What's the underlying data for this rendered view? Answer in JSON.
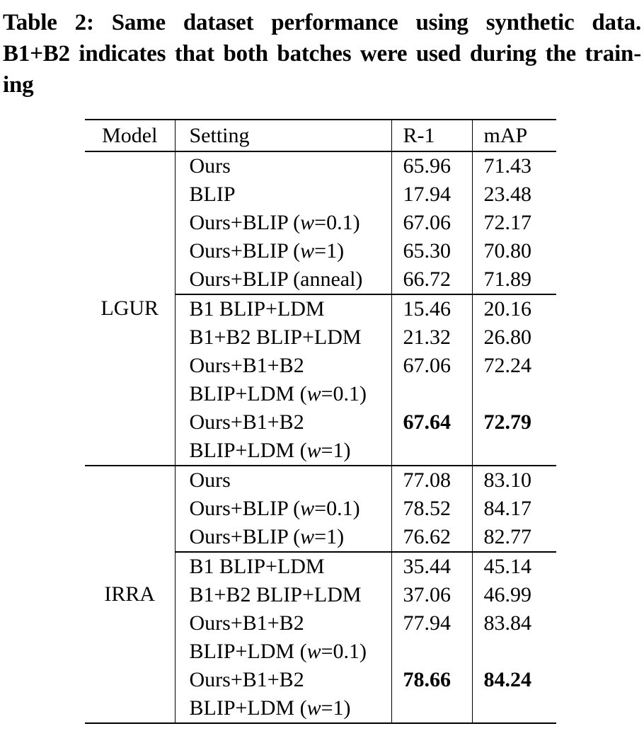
{
  "caption": {
    "lines": [
      "Table 2: Same dataset performance using synthetic data.",
      "B1+B2 indicates that both batches were used during the train-",
      "ing"
    ]
  },
  "table": {
    "headers": [
      "Model",
      "Setting",
      "R-1",
      "mAP"
    ],
    "groups": [
      {
        "model": "LGUR",
        "subgroups": [
          {
            "rows": [
              {
                "setting": [
                  "Ours"
                ],
                "r1": "65.96",
                "map": "71.43",
                "bold": false
              },
              {
                "setting": [
                  "BLIP"
                ],
                "r1": "17.94",
                "map": "23.48",
                "bold": false
              },
              {
                "setting": [
                  "Ours+BLIP (w=0.1)"
                ],
                "r1": "67.06",
                "map": "72.17",
                "bold": false
              },
              {
                "setting": [
                  "Ours+BLIP (w=1)"
                ],
                "r1": "65.30",
                "map": "70.80",
                "bold": false
              },
              {
                "setting": [
                  "Ours+BLIP (anneal)"
                ],
                "r1": "66.72",
                "map": "71.89",
                "bold": false
              }
            ]
          },
          {
            "rows": [
              {
                "setting": [
                  "B1 BLIP+LDM"
                ],
                "r1": "15.46",
                "map": "20.16",
                "bold": false
              },
              {
                "setting": [
                  "B1+B2 BLIP+LDM"
                ],
                "r1": "21.32",
                "map": "26.80",
                "bold": false
              },
              {
                "setting": [
                  "Ours+B1+B2",
                  "BLIP+LDM (w=0.1)"
                ],
                "r1": "67.06",
                "map": "72.24",
                "bold": false
              },
              {
                "setting": [
                  "Ours+B1+B2",
                  "BLIP+LDM (w=1)"
                ],
                "r1": "67.64",
                "map": "72.79",
                "bold": true
              }
            ]
          }
        ]
      },
      {
        "model": "IRRA",
        "subgroups": [
          {
            "rows": [
              {
                "setting": [
                  "Ours"
                ],
                "r1": "77.08",
                "map": "83.10",
                "bold": false
              },
              {
                "setting": [
                  "Ours+BLIP (w=0.1)"
                ],
                "r1": "78.52",
                "map": "84.17",
                "bold": false
              },
              {
                "setting": [
                  "Ours+BLIP (w=1)"
                ],
                "r1": "76.62",
                "map": "82.77",
                "bold": false
              }
            ]
          },
          {
            "rows": [
              {
                "setting": [
                  "B1 BLIP+LDM"
                ],
                "r1": "35.44",
                "map": "45.14",
                "bold": false
              },
              {
                "setting": [
                  "B1+B2 BLIP+LDM"
                ],
                "r1": "37.06",
                "map": "46.99",
                "bold": false
              },
              {
                "setting": [
                  "Ours+B1+B2",
                  "BLIP+LDM (w=0.1)"
                ],
                "r1": "77.94",
                "map": "83.84",
                "bold": false
              },
              {
                "setting": [
                  "Ours+B1+B2",
                  "BLIP+LDM (w=1)"
                ],
                "r1": "78.66",
                "map": "84.24",
                "bold": true
              }
            ]
          }
        ]
      }
    ]
  }
}
